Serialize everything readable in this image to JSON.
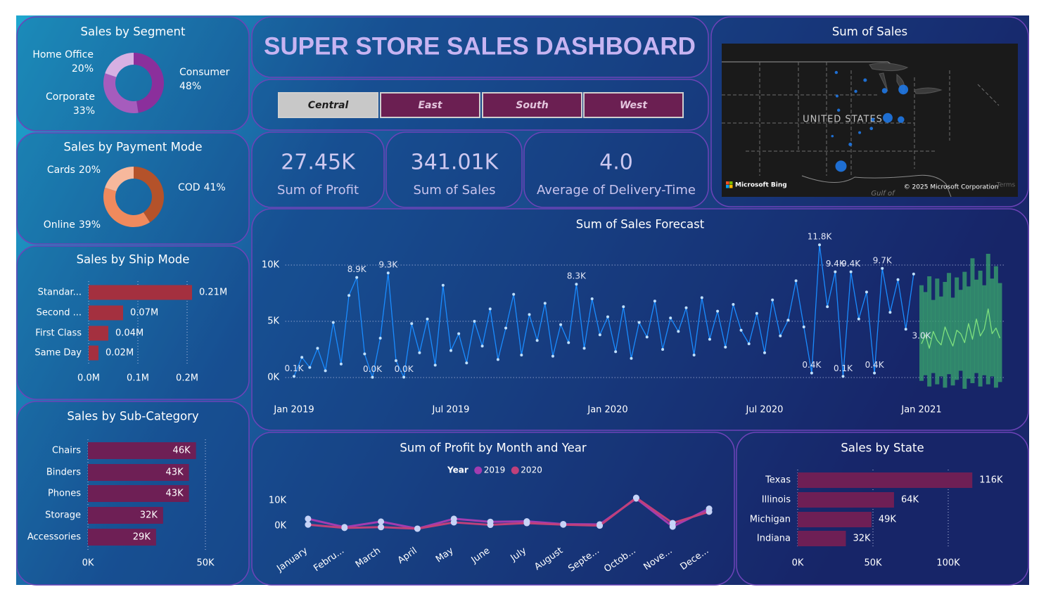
{
  "title": "SUPER STORE SALES DASHBOARD",
  "slicer": {
    "options": [
      "Central",
      "East",
      "South",
      "West"
    ],
    "selected": 0
  },
  "kpis": [
    {
      "value": "27.45K",
      "label": "Sum of Profit"
    },
    {
      "value": "341.01K",
      "label": "Sum of Sales"
    },
    {
      "value": "4.0",
      "label": "Average of Delivery-Time"
    }
  ],
  "chart_data": [
    {
      "type": "donut",
      "title": "Sales by Segment",
      "categories": [
        "Consumer",
        "Corporate",
        "Home Office"
      ],
      "values": [
        48,
        33,
        20
      ],
      "value_labels": [
        "48%",
        "33%",
        "20%"
      ],
      "colors": [
        "#8b2f9c",
        "#a65cbd",
        "#d7b0e3"
      ]
    },
    {
      "type": "donut",
      "title": "Sales by Payment Mode",
      "categories": [
        "COD",
        "Online",
        "Cards"
      ],
      "values": [
        41,
        39,
        20
      ],
      "value_labels": [
        "41%",
        "39%",
        "20%"
      ],
      "colors": [
        "#b4522a",
        "#f08a5d",
        "#f7b89c"
      ]
    },
    {
      "type": "hbar",
      "title": "Sales by Ship Mode",
      "categories": [
        "Standar...",
        "Second ...",
        "First Class",
        "Same Day"
      ],
      "values": [
        210000,
        70000,
        40000,
        20000
      ],
      "value_labels": [
        "0.21M",
        "0.07M",
        "0.04M",
        "0.02M"
      ],
      "color": "#a4303f",
      "xlim": [
        0,
        240000
      ],
      "xticks": [
        {
          "value": 0,
          "label": "0.0M"
        },
        {
          "value": 100000,
          "label": "0.1M"
        },
        {
          "value": 200000,
          "label": "0.2M"
        }
      ],
      "grid": true
    },
    {
      "type": "hbar",
      "title": "Sales by Sub-Category",
      "categories": [
        "Chairs",
        "Binders",
        "Phones",
        "Storage",
        "Accessories"
      ],
      "values": [
        46000,
        43000,
        43000,
        32000,
        29000
      ],
      "value_labels": [
        "46K",
        "43K",
        "43K",
        "32K",
        "29K"
      ],
      "color": "#6e1f55",
      "xlim": [
        0,
        55000
      ],
      "xticks": [
        {
          "value": 0,
          "label": "0K"
        },
        {
          "value": 50000,
          "label": "50K"
        }
      ],
      "grid": true
    },
    {
      "type": "map",
      "title": "Sum of Sales",
      "labels": {
        "country": "UNITED STATES",
        "provider": "Microsoft Bing",
        "copyright": "© 2025 Microsoft Corporation",
        "gulf": "Gulf of",
        "terms": "Terms"
      },
      "xlim": [
        -108,
        -70
      ],
      "ylim": [
        24,
        50
      ],
      "color": "#1f78e6",
      "x": [
        -93.3,
        -89.6,
        -87.1,
        -84.7,
        -90.8,
        -93.2,
        -93.0,
        -86.7,
        -85.0,
        -88.6,
        -88.8,
        -90.3,
        -91.5,
        -92.7,
        -93.8
      ],
      "y": [
        45.1,
        43.8,
        42.0,
        42.2,
        41.9,
        41.1,
        38.7,
        37.4,
        37.1,
        37.1,
        35.6,
        34.9,
        32.9,
        29.2,
        34.3
      ],
      "values": [
        3000,
        4000,
        9000,
        30000,
        3000,
        2500,
        3000,
        30000,
        14000,
        4000,
        3500,
        2500,
        4000,
        40000,
        2000
      ]
    },
    {
      "type": "line",
      "title": "Sum of Sales Forecast",
      "xlim": [
        2018.95,
        2021.3
      ],
      "ylim": [
        -1200,
        12000
      ],
      "xticks": [
        {
          "value": 2019,
          "label": "Jan 2019"
        },
        {
          "value": 2019.5,
          "label": "Jul 2019"
        },
        {
          "value": 2020,
          "label": "Jan 2020"
        },
        {
          "value": 2020.5,
          "label": "Jul 2020"
        },
        {
          "value": 2021,
          "label": "Jan 2021"
        }
      ],
      "yticks": [
        {
          "value": 0,
          "label": "0K"
        },
        {
          "value": 5000,
          "label": "5K"
        },
        {
          "value": 10000,
          "label": "10K"
        }
      ],
      "grid": true,
      "series": [
        {
          "color": "#1a8cff",
          "markers": true,
          "x": [
            2019,
            2019.025,
            2019.05,
            2019.075,
            2019.1,
            2019.125,
            2019.15,
            2019.175,
            2019.2,
            2019.225,
            2019.25,
            2019.275,
            2019.3,
            2019.325,
            2019.35,
            2019.375,
            2019.4,
            2019.425,
            2019.45,
            2019.475,
            2019.5,
            2019.525,
            2019.55,
            2019.575,
            2019.6,
            2019.625,
            2019.65,
            2019.675,
            2019.7,
            2019.725,
            2019.75,
            2019.775,
            2019.8,
            2019.825,
            2019.85,
            2019.875,
            2019.9,
            2019.925,
            2019.95,
            2019.975,
            2020,
            2020.025,
            2020.05,
            2020.075,
            2020.1,
            2020.125,
            2020.15,
            2020.175,
            2020.2,
            2020.225,
            2020.25,
            2020.275,
            2020.3,
            2020.325,
            2020.35,
            2020.375,
            2020.4,
            2020.425,
            2020.45,
            2020.475,
            2020.5,
            2020.525,
            2020.55,
            2020.575,
            2020.6,
            2020.625,
            2020.65,
            2020.675,
            2020.7,
            2020.725,
            2020.75,
            2020.775,
            2020.8,
            2020.825,
            2020.85,
            2020.875,
            2020.9,
            2020.925,
            2020.95,
            2020.975
          ],
          "values": [
            100,
            1800,
            900,
            2600,
            600,
            4900,
            1200,
            7300,
            8900,
            2100,
            20,
            3500,
            9300,
            1500,
            30,
            4800,
            2200,
            5200,
            1100,
            8200,
            2400,
            3900,
            1300,
            5000,
            2800,
            6100,
            1600,
            4400,
            7400,
            2000,
            5600,
            3300,
            6600,
            1900,
            4700,
            3100,
            8300,
            2600,
            7000,
            3800,
            5400,
            2300,
            6300,
            1700,
            4900,
            3600,
            6800,
            2500,
            5300,
            4100,
            6200,
            2000,
            7100,
            3400,
            5900,
            2700,
            6500,
            4200,
            3000,
            5700,
            2200,
            6900,
            3700,
            5100,
            8600,
            4500,
            400,
            11800,
            6300,
            9400,
            100,
            9400,
            5200,
            7600,
            400,
            9700,
            5800,
            8700,
            4300,
            9200
          ],
          "value_labels": [
            "0.1K",
            null,
            null,
            null,
            null,
            null,
            null,
            null,
            "8.9K",
            null,
            "0.0K",
            null,
            "9.3K",
            null,
            "0.0K",
            null,
            null,
            null,
            null,
            null,
            null,
            null,
            null,
            null,
            null,
            null,
            null,
            null,
            null,
            null,
            null,
            null,
            null,
            null,
            null,
            null,
            "8.3K",
            null,
            null,
            null,
            null,
            null,
            null,
            null,
            null,
            null,
            null,
            null,
            null,
            null,
            null,
            null,
            null,
            null,
            null,
            null,
            null,
            null,
            null,
            null,
            null,
            null,
            null,
            null,
            null,
            null,
            "0.4K",
            "11.8K",
            null,
            "9.4K",
            "0.1K",
            "9.4K",
            null,
            null,
            "0.4K",
            "9.7K",
            null,
            null,
            null,
            null
          ]
        },
        {
          "color": "#7ee07e",
          "markers": false,
          "band_color": "#3aa56e",
          "x": [
            2021,
            2021.0125,
            2021.025,
            2021.0375,
            2021.05,
            2021.0625,
            2021.075,
            2021.0875,
            2021.1,
            2021.1125,
            2021.125,
            2021.1375,
            2021.15,
            2021.1625,
            2021.175,
            2021.1875,
            2021.2,
            2021.2125,
            2021.225,
            2021.2375,
            2021.25
          ],
          "values": [
            3000,
            3800,
            2600,
            4100,
            3300,
            2900,
            4500,
            3600,
            2800,
            4200,
            3900,
            3100,
            4800,
            3400,
            5200,
            3700,
            4300,
            6100,
            3900,
            4400,
            3500
          ],
          "upper": [
            8200,
            7600,
            9000,
            6900,
            8800,
            7200,
            8500,
            9300,
            7100,
            8900,
            7800,
            9400,
            8100,
            10600,
            8700,
            9500,
            8200,
            11000,
            8800,
            9900,
            8400
          ],
          "lower": [
            -300,
            200,
            -800,
            400,
            -600,
            100,
            -900,
            300,
            -700,
            -200,
            600,
            -1000,
            -100,
            -500,
            400,
            -800,
            200,
            -600,
            100,
            -900,
            -400
          ],
          "value_labels": [
            "3.0K",
            null,
            null,
            null,
            null,
            null,
            null,
            null,
            null,
            null,
            null,
            null,
            null,
            null,
            null,
            null,
            null,
            null,
            null,
            null,
            null
          ]
        }
      ]
    },
    {
      "type": "line",
      "title": "Sum of Profit by Month and Year",
      "legend_title": "Year",
      "categories": [
        "January",
        "Febru...",
        "March",
        "April",
        "May",
        "June",
        "July",
        "August",
        "Septe...",
        "Octob...",
        "Nove...",
        "Dece..."
      ],
      "ylim": [
        -3000,
        13000
      ],
      "yticks": [
        {
          "value": 0,
          "label": "0K"
        },
        {
          "value": 10000,
          "label": "10K"
        }
      ],
      "grid": false,
      "series": [
        {
          "name": "2019",
          "color": "#a23cb0",
          "markers": true,
          "values": [
            2800,
            -500,
            1700,
            -1100,
            2800,
            1600,
            1800,
            700,
            600,
            10800,
            -300,
            6800
          ]
        },
        {
          "name": "2020",
          "color": "#c0407a",
          "markers": true,
          "values": [
            500,
            -800,
            -500,
            -1100,
            1400,
            400,
            1100,
            500,
            100,
            11100,
            1100,
            5600
          ]
        }
      ]
    },
    {
      "type": "hbar",
      "title": "Sales by State",
      "categories": [
        "Texas",
        "Illinois",
        "Michigan",
        "Indiana"
      ],
      "values": [
        116000,
        64000,
        49000,
        32000
      ],
      "value_labels": [
        "116K",
        "64K",
        "49K",
        "32K"
      ],
      "color": "#6e1f55",
      "xlim": [
        0,
        140000
      ],
      "xticks": [
        {
          "value": 0,
          "label": "0K"
        },
        {
          "value": 50000,
          "label": "50K"
        },
        {
          "value": 100000,
          "label": "100K"
        }
      ],
      "grid": true
    }
  ]
}
